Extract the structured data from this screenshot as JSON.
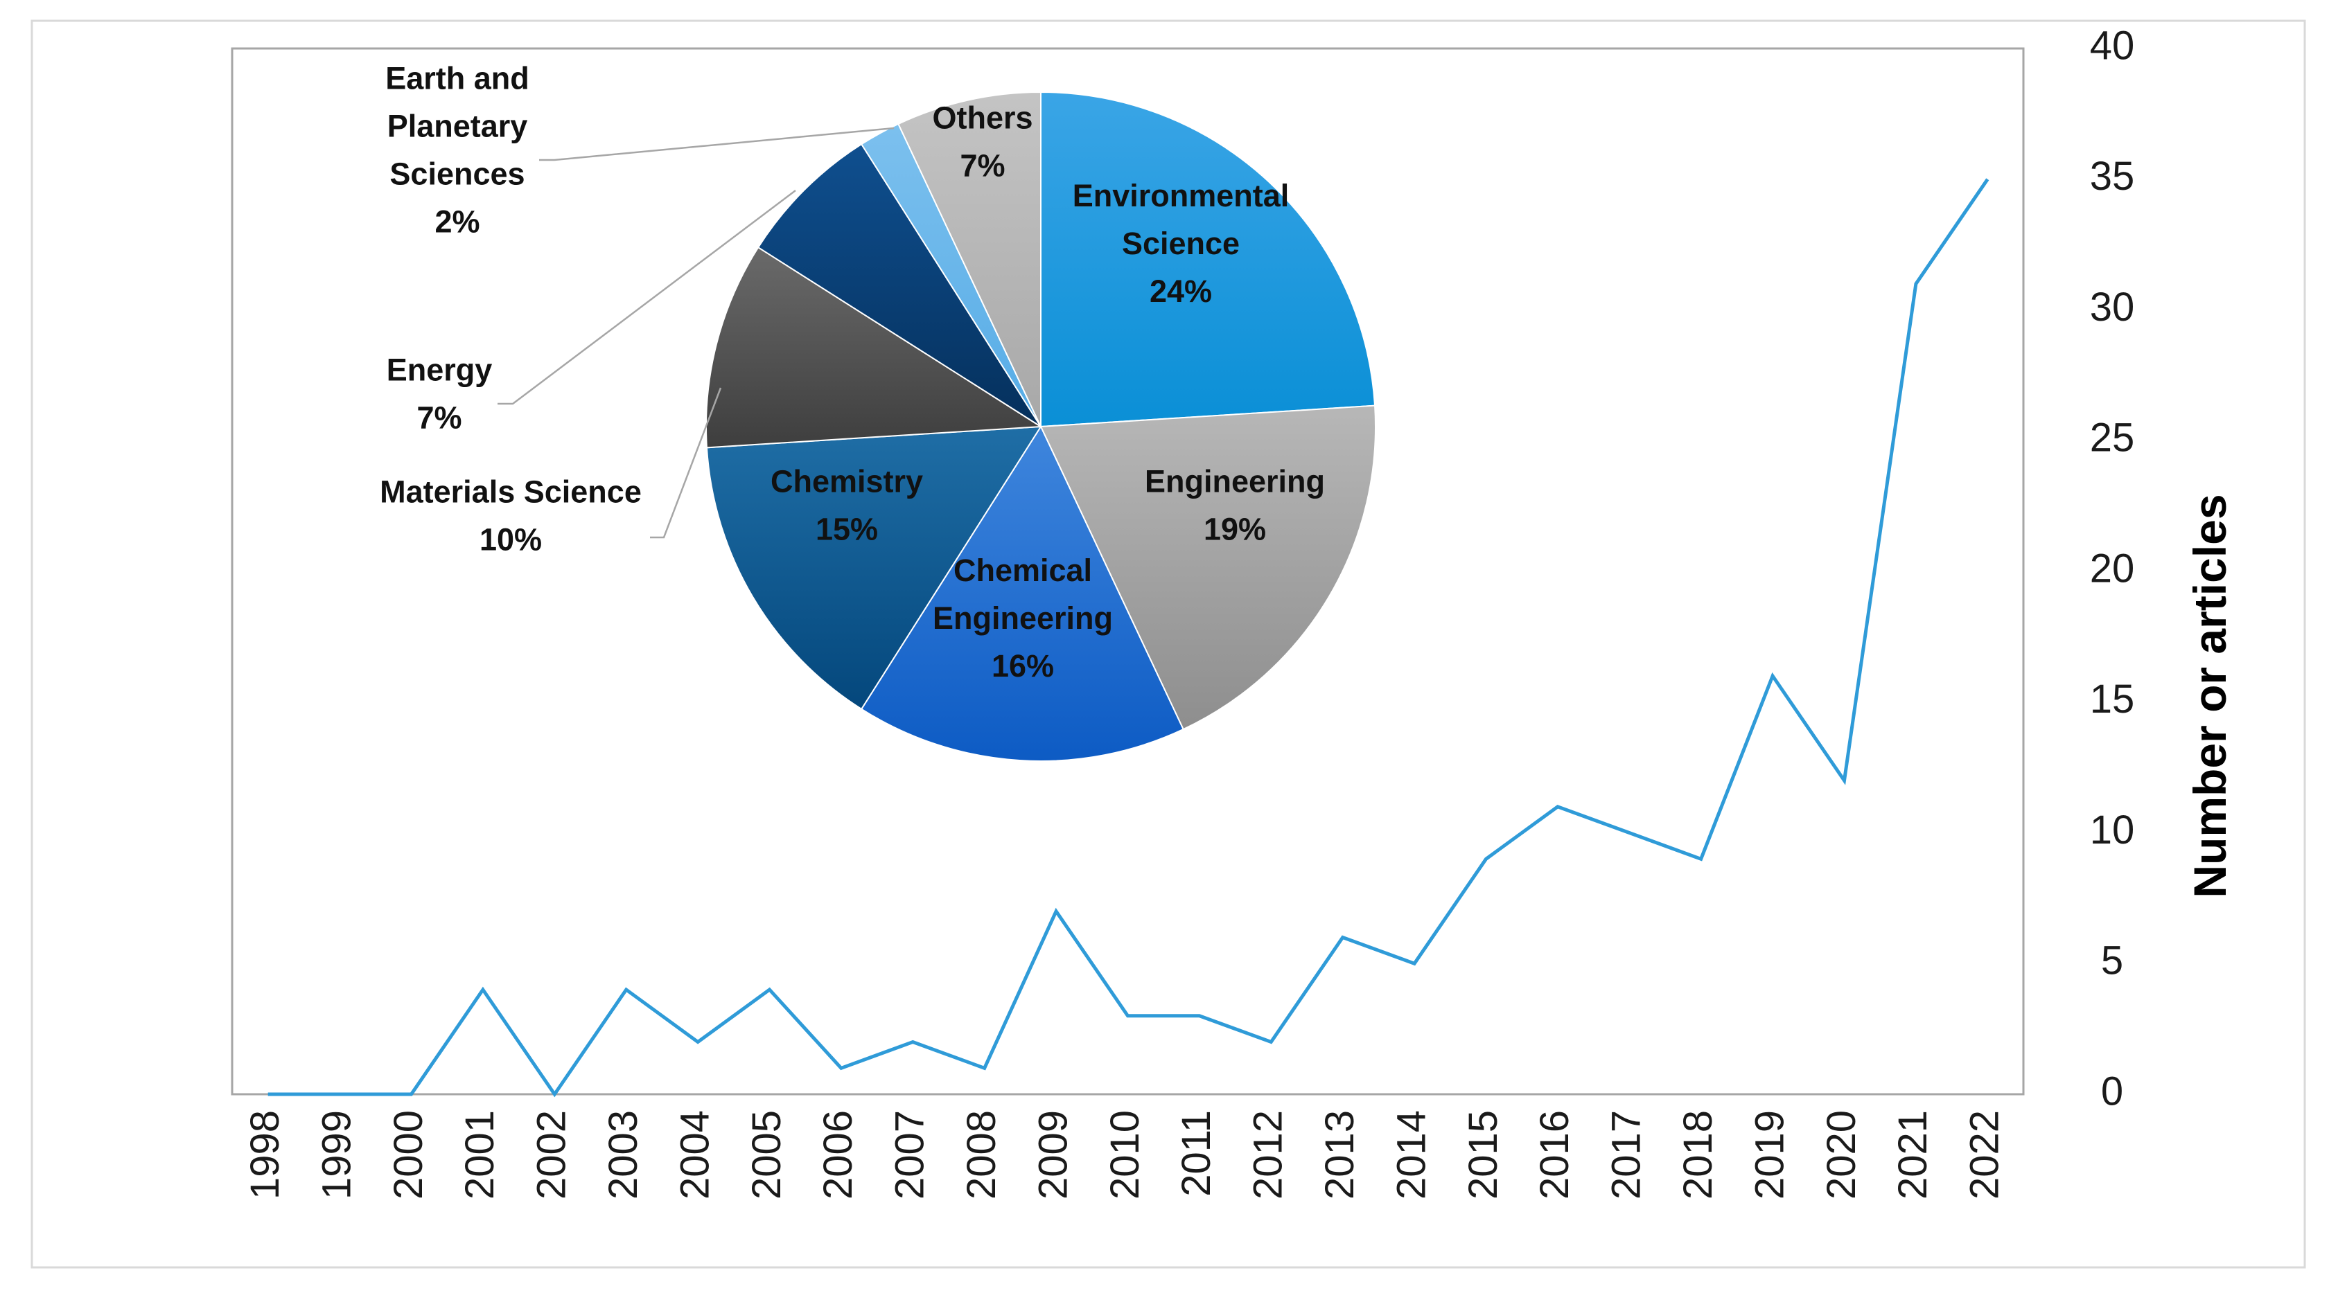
{
  "colors": {
    "line": "#2f9bd8",
    "frame": "#d9d9d9",
    "plot_border": "#a6a6a6",
    "callout_line": "#a6a6a6"
  },
  "chart_data": [
    {
      "type": "line",
      "title": "",
      "xlabel": "",
      "ylabel": "Number or articles",
      "y_axis_side": "right",
      "ylim": [
        0,
        40
      ],
      "yticks": [
        0,
        5,
        10,
        15,
        20,
        25,
        30,
        35,
        40
      ],
      "grid": false,
      "categories": [
        "1998",
        "1999",
        "2000",
        "2001",
        "2002",
        "2003",
        "2004",
        "2005",
        "2006",
        "2007",
        "2008",
        "2009",
        "2010",
        "2011",
        "2012",
        "2013",
        "2014",
        "2015",
        "2016",
        "2017",
        "2018",
        "2019",
        "2020",
        "2021",
        "2022"
      ],
      "series": [
        {
          "name": "Number or articles",
          "values": [
            0,
            0,
            0,
            4,
            0,
            4,
            2,
            4,
            1,
            2,
            1,
            7,
            3,
            3,
            2,
            6,
            5,
            9,
            11,
            10,
            9,
            16,
            12,
            31,
            35
          ]
        }
      ]
    },
    {
      "type": "pie",
      "title": "",
      "slices": [
        {
          "name": "Environmental Science",
          "lines": [
            "Environmental",
            "Science"
          ],
          "pct_label": "24%",
          "value": 24,
          "color_top": "#3aa5e6",
          "color_bottom": "#0a8fd6",
          "label_inside": true
        },
        {
          "name": "Engineering",
          "lines": [
            "Engineering"
          ],
          "pct_label": "19%",
          "value": 19,
          "color_top": "#b7b7b7",
          "color_bottom": "#8e8e8e",
          "label_inside": true
        },
        {
          "name": "Chemical Engineering",
          "lines": [
            "Chemical",
            "Engineering"
          ],
          "pct_label": "16%",
          "value": 16,
          "color_top": "#3f86dd",
          "color_bottom": "#0d5bc4",
          "label_inside": true
        },
        {
          "name": "Chemistry",
          "lines": [
            "Chemistry"
          ],
          "pct_label": "15%",
          "value": 15,
          "color_top": "#1f6ea6",
          "color_bottom": "#04477c",
          "label_inside": true
        },
        {
          "name": "Materials Science",
          "lines": [
            "Materials Science"
          ],
          "pct_label": "10%",
          "value": 10,
          "color_top": "#6a6a6a",
          "color_bottom": "#3e3e3e",
          "label_inside": false
        },
        {
          "name": "Energy",
          "lines": [
            "Energy"
          ],
          "pct_label": "7%",
          "value": 7,
          "color_top": "#0f4f8f",
          "color_bottom": "#05305c",
          "label_inside": false
        },
        {
          "name": "Earth and Planetary Sciences",
          "lines": [
            "Earth and",
            "Planetary",
            "Sciences"
          ],
          "pct_label": "2%",
          "value": 2,
          "color_top": "#7cc0ee",
          "color_bottom": "#56ace6",
          "label_inside": false
        },
        {
          "name": "Others",
          "lines": [
            "Others"
          ],
          "pct_label": "7%",
          "value": 7,
          "color_top": "#c4c4c4",
          "color_bottom": "#a8a8a8",
          "label_inside": true
        }
      ]
    }
  ]
}
